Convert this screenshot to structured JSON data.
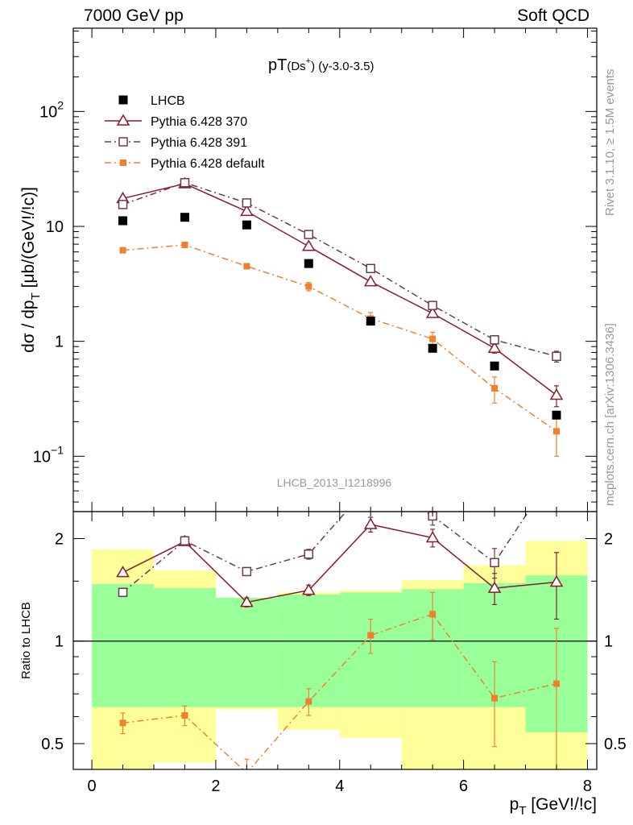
{
  "header": {
    "energy_label": "7000 GeV pp",
    "process_label": "Soft QCD"
  },
  "side_labels": {
    "rivet": "Rivet 3.1.10, ≥ 1.5M events",
    "mcplots": "mcplots.cern.ch [arXiv:1306.3436]"
  },
  "chart_data": {
    "type": "scatter",
    "title_main": "pT",
    "title_sub": "(Ds",
    "title_sup": "+",
    "title_close": ")",
    "title_range": " (y-3.0-3.5)",
    "analysis_label": "LHCB_2013_I1218996",
    "ylabel_main_pre": "dσ / dp",
    "ylabel_main_sub": "T",
    "ylabel_main_post": " [μb/(GeV!/!c)]",
    "ylabel_ratio": "Ratio to LHCB",
    "xlabel_pre": "p",
    "xlabel_sub": "T",
    "xlabel_post": " [GeV!/!c]",
    "x_ticks": [
      "0",
      "2",
      "4",
      "6",
      "8"
    ],
    "main_y_ticks": [
      {
        "value": 100,
        "base": "10",
        "exp": "2"
      },
      {
        "value": 10,
        "base": "10",
        "exp": ""
      },
      {
        "value": 1,
        "base": "1",
        "exp": ""
      },
      {
        "value": 0.1,
        "base": "10",
        "exp": "−1"
      }
    ],
    "ratio_y_ticks": [
      {
        "value": 0.5,
        "label": "0.5"
      },
      {
        "value": 1,
        "label": "1"
      },
      {
        "value": 2,
        "label": "2"
      }
    ],
    "xlim": [
      -0.3,
      8.15
    ],
    "main_ylim": [
      0.033,
      530
    ],
    "ratio_ylim": [
      0.42,
      2.4
    ],
    "log_y": true,
    "legend_position": "top-left",
    "bin_edges": [
      0,
      1,
      2,
      3,
      4,
      5,
      6,
      7,
      8
    ],
    "x": [
      0.5,
      1.5,
      2.5,
      3.5,
      4.5,
      5.5,
      6.5,
      7.5
    ],
    "series": [
      {
        "name": "LHCB",
        "color": "#000000",
        "marker": "filled-square",
        "line": "none",
        "values": [
          11.2,
          12.0,
          10.3,
          4.75,
          1.5,
          0.87,
          0.61,
          0.228
        ],
        "band_inner": [
          [
            0.64,
            1.47
          ],
          [
            0.64,
            1.43
          ],
          [
            0.64,
            1.34
          ],
          [
            0.64,
            1.37
          ],
          [
            0.64,
            1.39
          ],
          [
            0.64,
            1.42
          ],
          [
            0.64,
            1.48
          ],
          [
            0.54,
            1.56
          ]
        ],
        "band_outer": [
          [
            0.33,
            1.86
          ],
          [
            0.44,
            1.61
          ],
          [
            0.63,
            1.3
          ],
          [
            0.55,
            1.39
          ],
          [
            0.52,
            1.41
          ],
          [
            0.4,
            1.51
          ],
          [
            0.4,
            1.67
          ],
          [
            0.33,
            1.97
          ]
        ]
      },
      {
        "name": "Pythia 6.428 370",
        "color": "#8b1a2b",
        "marker": "open-triangle",
        "line": "solid",
        "values": [
          17.5,
          23.5,
          13.5,
          6.7,
          3.3,
          1.75,
          0.87,
          0.34
        ],
        "errors": [
          0.5,
          0.5,
          0.4,
          0.25,
          0.15,
          0.1,
          0.08,
          0.07
        ],
        "ratio": [
          1.59,
          1.96,
          1.3,
          1.41,
          2.2,
          2.01,
          1.43,
          1.49
        ],
        "ratio_errors": [
          0.02,
          0.03,
          0.04,
          0.05,
          0.11,
          0.12,
          0.15,
          0.33
        ]
      },
      {
        "name": "Pythia 6.428 391",
        "color": "#6b3a50",
        "marker": "open-square",
        "line": "dash-dot",
        "values": [
          15.5,
          24.0,
          16.0,
          8.5,
          4.3,
          2.05,
          1.03,
          0.74
        ],
        "errors": [
          0.5,
          0.6,
          0.5,
          0.3,
          0.2,
          0.12,
          0.09,
          0.08
        ],
        "ratio": [
          1.39,
          1.97,
          1.6,
          1.8,
          2.9,
          2.33,
          1.7,
          3.2
        ],
        "ratio_errors": [
          0.02,
          0.03,
          0.04,
          0.06,
          0.14,
          0.14,
          0.17,
          0.35
        ]
      },
      {
        "name": "Pythia 6.428 default",
        "color": "#f08030",
        "marker": "filled-square-small",
        "line": "dash-dot",
        "values": [
          6.2,
          6.9,
          4.5,
          3.0,
          1.58,
          1.05,
          0.39,
          0.165
        ],
        "errors": [
          0.2,
          0.25,
          0.2,
          0.25,
          0.2,
          0.15,
          0.1,
          0.065
        ],
        "ratio": [
          0.575,
          0.605,
          0.41,
          0.665,
          1.04,
          1.2,
          0.68,
          0.75
        ],
        "ratio_errors": [
          0.04,
          0.04,
          0.04,
          0.06,
          0.12,
          0.19,
          0.19,
          0.34
        ]
      }
    ]
  }
}
